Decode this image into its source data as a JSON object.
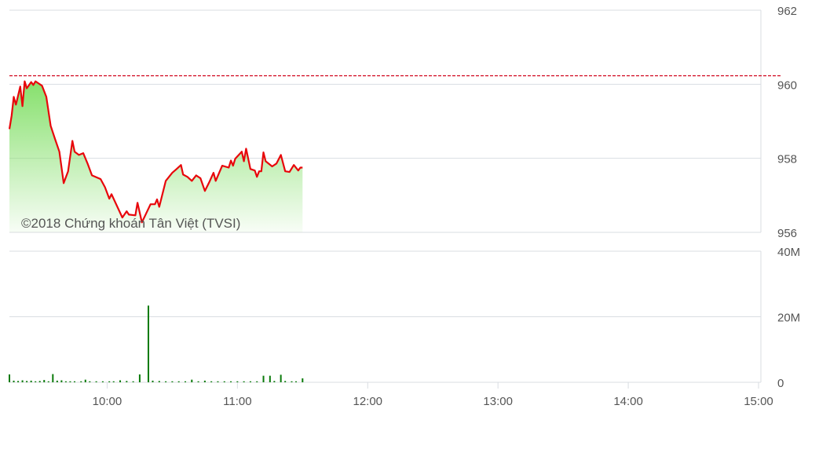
{
  "watermark": "©2018 Chứng khoán Tân Việt (TVSI)",
  "colors": {
    "line": "#e8060b",
    "reference": "#d0021b",
    "fill_top": "#86e06c",
    "volume": "#0a7a0a",
    "grid": "#d9dde2"
  },
  "chart_data": [
    {
      "type": "area",
      "xlim": [
        "09:15",
        "15:00"
      ],
      "ylim": [
        956,
        962
      ],
      "yticks": [
        "962",
        "960",
        "958",
        "956"
      ],
      "grid": true,
      "reference_line": 960.23,
      "points": [
        [
          "09:15",
          958.79
        ],
        [
          "09:16",
          959.15
        ],
        [
          "09:17",
          959.66
        ],
        [
          "09:18",
          959.45
        ],
        [
          "09:20",
          959.94
        ],
        [
          "09:21",
          959.41
        ],
        [
          "09:22",
          960.08
        ],
        [
          "09:23",
          959.89
        ],
        [
          "09:25",
          960.06
        ],
        [
          "09:26",
          959.98
        ],
        [
          "09:27",
          960.08
        ],
        [
          "09:30",
          959.96
        ],
        [
          "09:32",
          959.66
        ],
        [
          "09:34",
          958.88
        ],
        [
          "09:36",
          958.52
        ],
        [
          "09:38",
          958.18
        ],
        [
          "09:40",
          957.33
        ],
        [
          "09:42",
          957.65
        ],
        [
          "09:44",
          958.47
        ],
        [
          "09:45",
          958.18
        ],
        [
          "09:47",
          958.09
        ],
        [
          "09:49",
          958.14
        ],
        [
          "09:51",
          957.86
        ],
        [
          "09:53",
          957.54
        ],
        [
          "09:57",
          957.44
        ],
        [
          "09:59",
          957.22
        ],
        [
          "10:01",
          956.91
        ],
        [
          "10:02",
          957.03
        ],
        [
          "10:07",
          956.4
        ],
        [
          "10:09",
          956.57
        ],
        [
          "10:10",
          956.48
        ],
        [
          "10:13",
          956.46
        ],
        [
          "10:14",
          956.8
        ],
        [
          "10:16",
          956.27
        ],
        [
          "10:20",
          956.76
        ],
        [
          "10:22",
          956.76
        ],
        [
          "10:23",
          956.89
        ],
        [
          "10:24",
          956.69
        ],
        [
          "10:27",
          957.39
        ],
        [
          "10:30",
          957.61
        ],
        [
          "10:32",
          957.71
        ],
        [
          "10:34",
          957.82
        ],
        [
          "10:35",
          957.56
        ],
        [
          "10:37",
          957.5
        ],
        [
          "10:39",
          957.39
        ],
        [
          "10:41",
          957.54
        ],
        [
          "10:43",
          957.46
        ],
        [
          "10:45",
          957.12
        ],
        [
          "10:47",
          957.35
        ],
        [
          "10:49",
          957.61
        ],
        [
          "10:50",
          957.39
        ],
        [
          "10:53",
          957.8
        ],
        [
          "10:56",
          957.75
        ],
        [
          "10:57",
          957.94
        ],
        [
          "10:58",
          957.8
        ],
        [
          "10:59",
          957.99
        ],
        [
          "11:02",
          958.18
        ],
        [
          "11:03",
          957.92
        ],
        [
          "11:04",
          958.26
        ],
        [
          "11:06",
          957.71
        ],
        [
          "11:08",
          957.67
        ],
        [
          "11:09",
          957.5
        ],
        [
          "11:10",
          957.65
        ],
        [
          "11:11",
          957.65
        ],
        [
          "11:12",
          958.16
        ],
        [
          "11:13",
          957.92
        ],
        [
          "11:16",
          957.78
        ],
        [
          "11:18",
          957.86
        ],
        [
          "11:20",
          958.09
        ],
        [
          "11:22",
          957.65
        ],
        [
          "11:24",
          957.63
        ],
        [
          "11:26",
          957.82
        ],
        [
          "11:28",
          957.67
        ],
        [
          "11:29",
          957.75
        ],
        [
          "11:30",
          957.75
        ]
      ]
    },
    {
      "type": "bar",
      "xlim": [
        "09:15",
        "15:00"
      ],
      "ylim": [
        0,
        40000000
      ],
      "yticks": [
        "40M",
        "20M",
        "0"
      ],
      "xticks": [
        "10:00",
        "11:00",
        "12:00",
        "13:00",
        "14:00",
        "15:00"
      ],
      "grid": true,
      "bars": [
        [
          "09:15",
          2400000
        ],
        [
          "09:17",
          500000
        ],
        [
          "09:19",
          400000
        ],
        [
          "09:21",
          600000
        ],
        [
          "09:23",
          400000
        ],
        [
          "09:25",
          500000
        ],
        [
          "09:27",
          300000
        ],
        [
          "09:29",
          400000
        ],
        [
          "09:31",
          700000
        ],
        [
          "09:33",
          300000
        ],
        [
          "09:35",
          2500000
        ],
        [
          "09:37",
          500000
        ],
        [
          "09:39",
          600000
        ],
        [
          "09:41",
          300000
        ],
        [
          "09:43",
          300000
        ],
        [
          "09:45",
          300000
        ],
        [
          "09:48",
          300000
        ],
        [
          "09:50",
          800000
        ],
        [
          "09:52",
          300000
        ],
        [
          "09:55",
          300000
        ],
        [
          "09:58",
          300000
        ],
        [
          "10:01",
          300000
        ],
        [
          "10:03",
          300000
        ],
        [
          "10:06",
          600000
        ],
        [
          "10:09",
          400000
        ],
        [
          "10:12",
          300000
        ],
        [
          "10:15",
          2400000
        ],
        [
          "10:19",
          23400000
        ],
        [
          "10:21",
          500000
        ],
        [
          "10:24",
          400000
        ],
        [
          "10:27",
          300000
        ],
        [
          "10:30",
          300000
        ],
        [
          "10:33",
          300000
        ],
        [
          "10:36",
          300000
        ],
        [
          "10:39",
          800000
        ],
        [
          "10:42",
          300000
        ],
        [
          "10:45",
          500000
        ],
        [
          "10:48",
          300000
        ],
        [
          "10:51",
          300000
        ],
        [
          "10:54",
          300000
        ],
        [
          "10:57",
          300000
        ],
        [
          "11:00",
          300000
        ],
        [
          "11:03",
          300000
        ],
        [
          "11:06",
          300000
        ],
        [
          "11:09",
          300000
        ],
        [
          "11:12",
          2000000
        ],
        [
          "11:15",
          2000000
        ],
        [
          "11:17",
          400000
        ],
        [
          "11:20",
          2300000
        ],
        [
          "11:22",
          400000
        ],
        [
          "11:25",
          300000
        ],
        [
          "11:27",
          300000
        ],
        [
          "11:30",
          1200000
        ]
      ]
    }
  ]
}
